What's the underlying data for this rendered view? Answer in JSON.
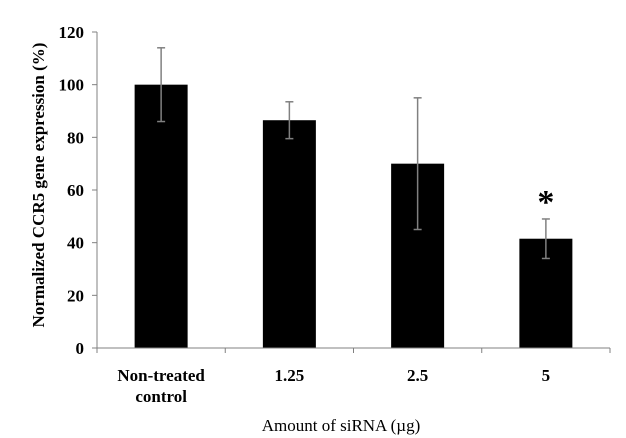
{
  "chart_data": {
    "type": "bar",
    "categories": [
      "Non-treated control",
      "1.25",
      "2.5",
      "5"
    ],
    "category_lines": [
      [
        "Non-treated",
        "control"
      ],
      [
        "1.25"
      ],
      [
        "2.5"
      ],
      [
        "5"
      ]
    ],
    "values": [
      100,
      86.5,
      70,
      41.5
    ],
    "error": [
      14,
      7,
      25,
      7.5
    ],
    "xlabel": "Amount of siRNA (µg)",
    "ylabel": "Normalized CCR5 gene expression (%)",
    "ylim": [
      0,
      120
    ],
    "yticks": [
      0,
      20,
      40,
      60,
      80,
      100,
      120
    ],
    "annotations": [
      {
        "category": "5",
        "text": "*"
      }
    ],
    "grid": false,
    "bar_color": "#000000",
    "error_color": "#808080"
  }
}
